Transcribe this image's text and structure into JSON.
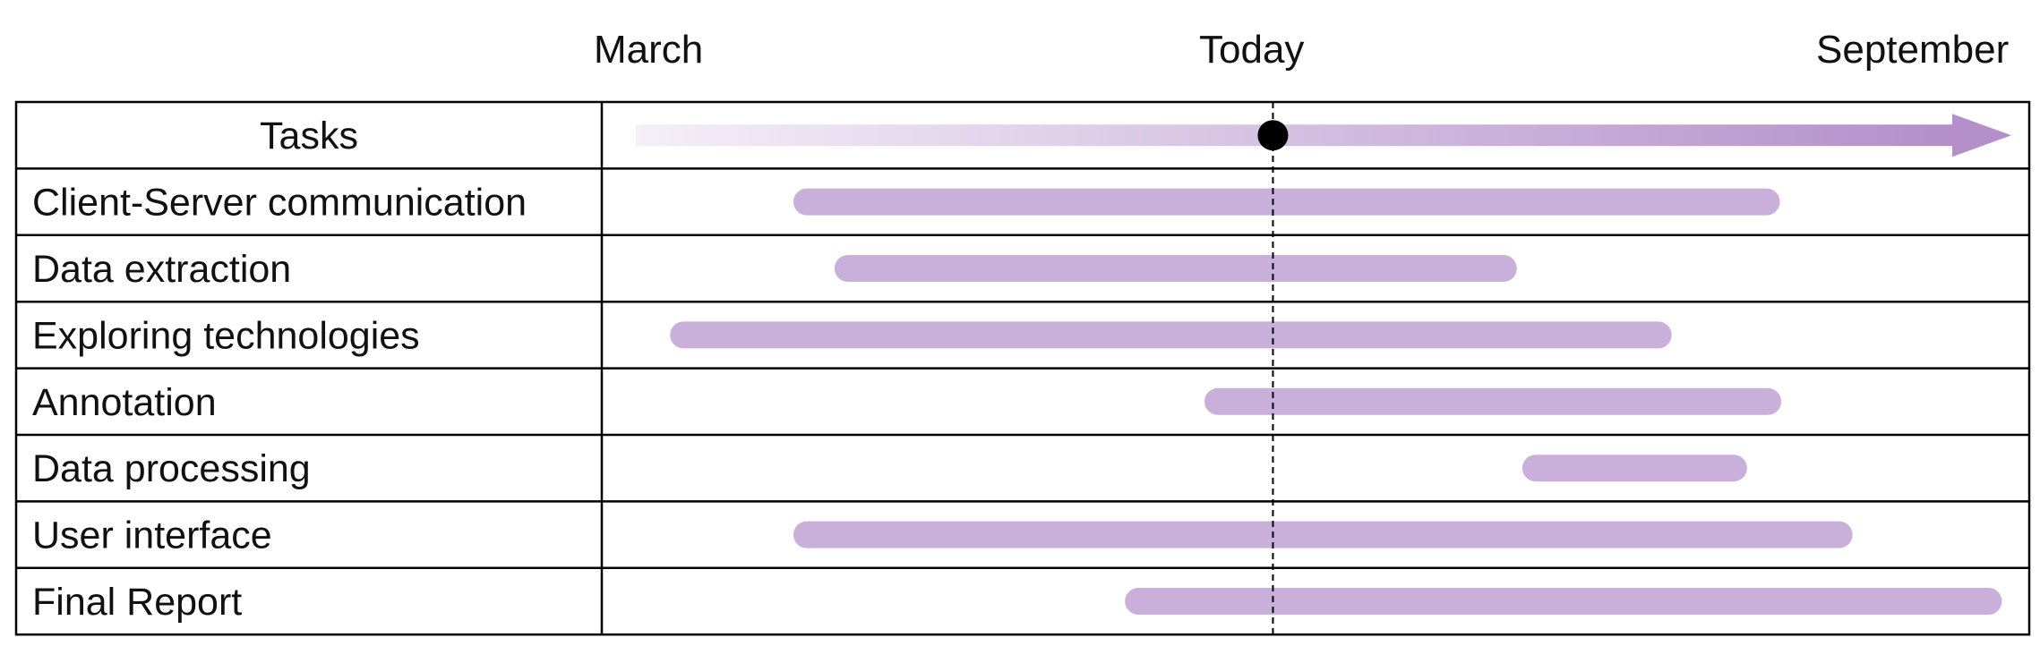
{
  "chart_data": {
    "type": "gantt",
    "timeline": {
      "start_label": "March",
      "today_label": "Today",
      "end_label": "September",
      "today_position": 0.465
    },
    "header_label": "Tasks",
    "colors": {
      "bar": "#c9b0da",
      "arrow_start": "#f4eff8",
      "arrow_end": "#b48fca",
      "today_marker": "#000000",
      "grid": "#000000"
    },
    "tasks": [
      {
        "name": "Client-Server communication",
        "start": 0.115,
        "end": 0.835
      },
      {
        "name": "Data extraction",
        "start": 0.145,
        "end": 0.643
      },
      {
        "name": "Exploring technologies",
        "start": 0.025,
        "end": 0.756
      },
      {
        "name": "Annotation",
        "start": 0.415,
        "end": 0.836
      },
      {
        "name": "Data processing",
        "start": 0.647,
        "end": 0.811
      },
      {
        "name": "User interface",
        "start": 0.115,
        "end": 0.888
      },
      {
        "name": "Final Report",
        "start": 0.357,
        "end": 0.997
      }
    ]
  }
}
